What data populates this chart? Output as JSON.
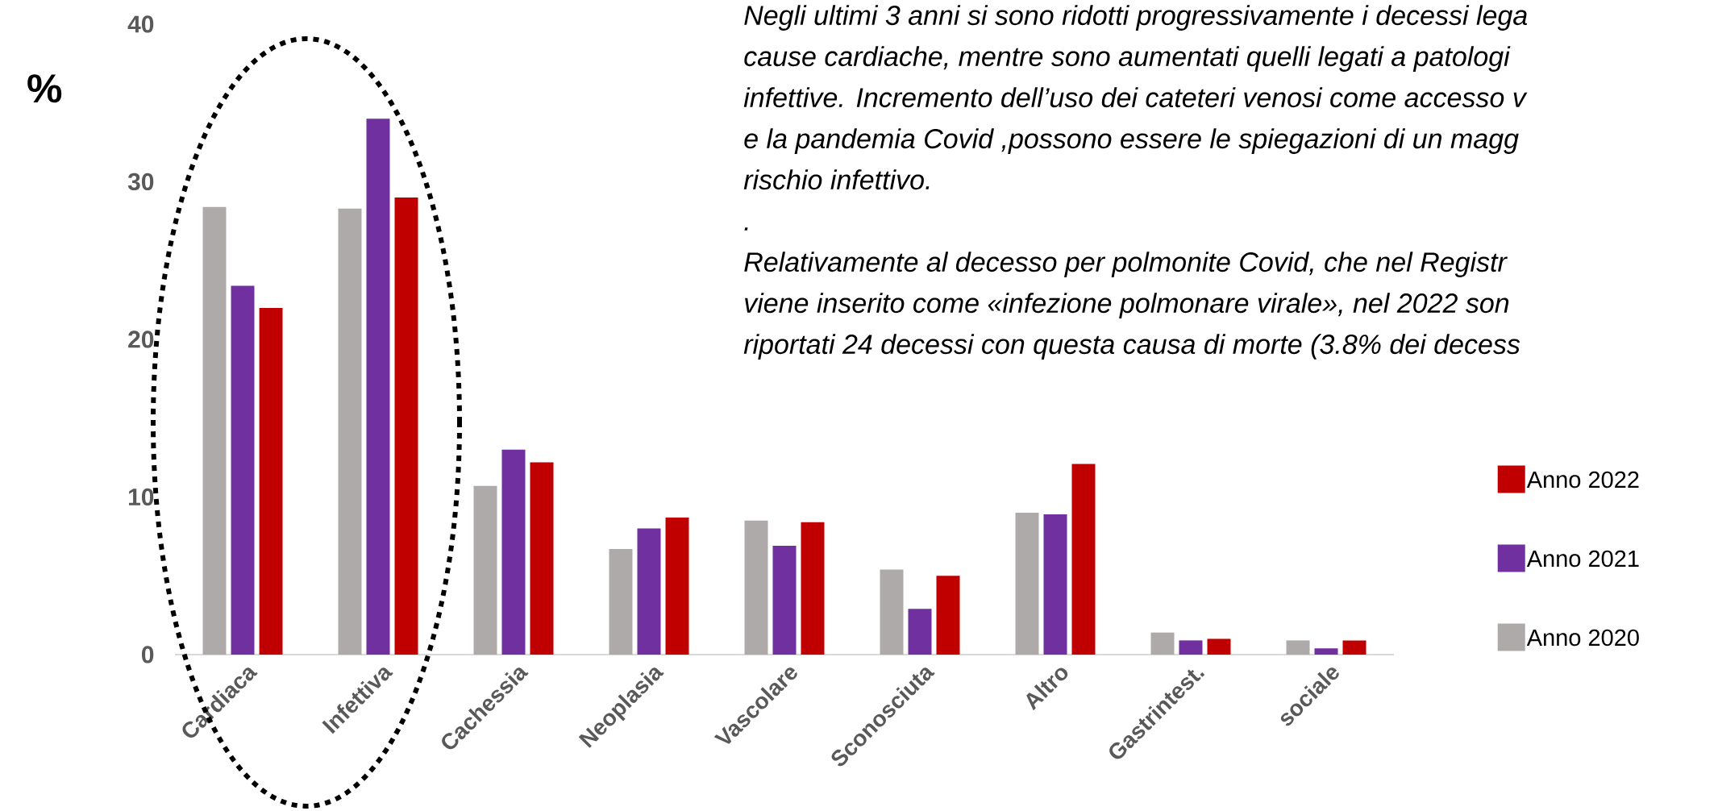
{
  "chart_data": {
    "type": "bar",
    "ylabel": "%",
    "categories": [
      "Cardiaca",
      "Infettiva",
      "Cachessia",
      "Neoplasia",
      "Vascolare",
      "Sconosciuta",
      "Altro",
      "Gastrintest.",
      "sociale"
    ],
    "series": [
      {
        "name": "Anno 2020",
        "color": "#aeaaaa",
        "values": [
          28.4,
          28.3,
          10.7,
          6.7,
          8.5,
          5.4,
          9.0,
          1.4,
          0.9
        ]
      },
      {
        "name": "Anno 2021",
        "color": "#7030a0",
        "values": [
          23.4,
          34.0,
          13.0,
          8.0,
          6.9,
          2.9,
          8.9,
          0.9,
          0.4
        ]
      },
      {
        "name": "Anno 2022",
        "color": "#c00000",
        "values": [
          22.0,
          29.0,
          12.2,
          8.7,
          8.4,
          5.0,
          12.1,
          1.0,
          0.9
        ]
      }
    ],
    "ylim": [
      0,
      40
    ],
    "yticks": [
      0,
      10,
      20,
      30,
      40
    ],
    "grid": false,
    "legend": "right",
    "annotations": [
      "Negli ultimi 3 anni si sono ridotti progressivamente i decessi lega",
      "cause cardiache, mentre sono aumentati  quelli legati a patologi",
      "infettive. Incremento dell’uso dei cateteri venosi come accesso v",
      "e la  pandemia Covid ,possono essere le spiegazioni di un magg",
      "rischio infettivo.",
      ".",
      "Relativamente al decesso per  polmonite Covid, che nel Registr",
      "viene inserito  come «infezione polmonare virale», nel 2022  son",
      "riportati 24 decessi con questa causa di morte (3.8% dei decess"
    ]
  }
}
